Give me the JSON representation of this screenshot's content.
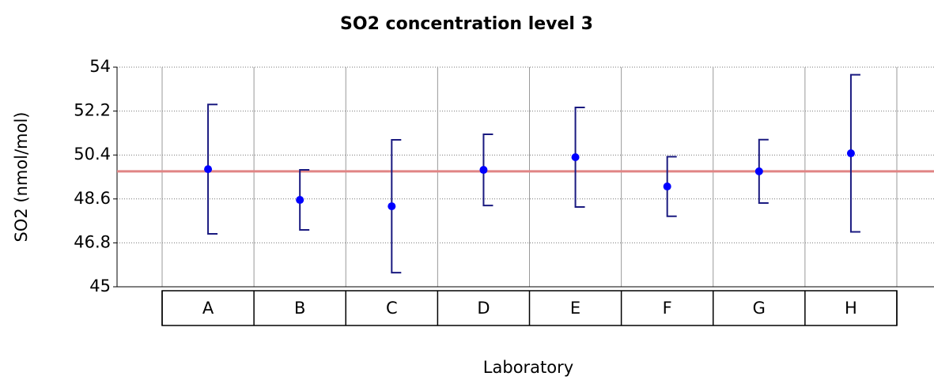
{
  "chart_data": {
    "type": "errorbar",
    "title": "SO2 concentration level 3",
    "x_label": "Laboratory",
    "y_label": "SO2 (nmol/mol)",
    "categories": [
      "A",
      "B",
      "C",
      "D",
      "E",
      "F",
      "G",
      "H"
    ],
    "values": [
      49.82,
      48.56,
      48.3,
      49.79,
      50.31,
      49.11,
      49.73,
      50.47
    ],
    "errors": [
      2.65,
      1.23,
      2.72,
      1.46,
      2.04,
      1.22,
      1.3,
      3.22
    ],
    "reference": 49.73,
    "color": "#0000ff",
    "error_color": "#1a1a80",
    "reference_color": "#e08585",
    "ylim": [
      45,
      54
    ],
    "yticks": [
      45,
      46.8,
      48.6,
      50.4,
      52.2,
      54
    ],
    "grid": true
  }
}
